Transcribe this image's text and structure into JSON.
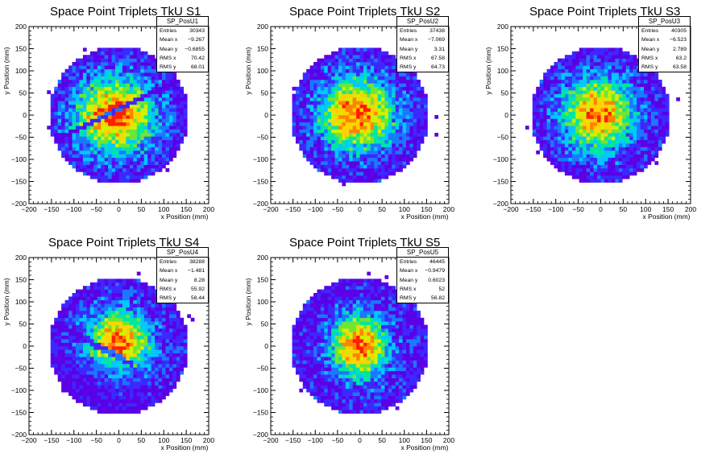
{
  "chart_data": [
    {
      "type": "heatmap",
      "title": "Space Point Triplets TkU S1",
      "xlabel": "x Position (mm)",
      "ylabel": "y Position (mm)",
      "xlim": [
        -200,
        200
      ],
      "ylim": [
        -200,
        200
      ],
      "xticks": [
        -200,
        -150,
        -100,
        -50,
        0,
        50,
        100,
        150,
        200
      ],
      "yticks": [
        -200,
        -150,
        -100,
        -50,
        0,
        50,
        100,
        150,
        200
      ],
      "stats": {
        "name": "SP_PosU1",
        "rows": [
          {
            "label": "Entries",
            "value": "30343"
          },
          {
            "label": "Mean x",
            "value": "−9.267"
          },
          {
            "label": "Mean y",
            "value": "−0.6855"
          },
          {
            "label": "RMS x",
            "value": "70.42"
          },
          {
            "label": "RMS y",
            "value": "68.01"
          }
        ]
      },
      "distribution": {
        "radius_mm": 155,
        "center_x": -9.267,
        "center_y": -0.6855,
        "sigma_x": 70.42,
        "sigma_y": 68.01,
        "feature": "diagonal-gap"
      }
    },
    {
      "type": "heatmap",
      "title": "Space Point Triplets TkU S2",
      "xlabel": "x Position (mm)",
      "ylabel": "y Position (mm)",
      "xlim": [
        -200,
        200
      ],
      "ylim": [
        -200,
        200
      ],
      "xticks": [
        -200,
        -150,
        -100,
        -50,
        0,
        50,
        100,
        150,
        200
      ],
      "yticks": [
        -200,
        -150,
        -100,
        -50,
        0,
        50,
        100,
        150,
        200
      ],
      "stats": {
        "name": "SP_PosU2",
        "rows": [
          {
            "label": "Entries",
            "value": "37438"
          },
          {
            "label": "Mean x",
            "value": "−7.069"
          },
          {
            "label": "Mean y",
            "value": "3.31"
          },
          {
            "label": "RMS x",
            "value": "67.58"
          },
          {
            "label": "RMS y",
            "value": "64.73"
          }
        ]
      },
      "distribution": {
        "radius_mm": 155,
        "center_x": -7.069,
        "center_y": 3.31,
        "sigma_x": 67.58,
        "sigma_y": 64.73,
        "feature": "none"
      }
    },
    {
      "type": "heatmap",
      "title": "Space Point Triplets TkU S3",
      "xlabel": "x Position (mm)",
      "ylabel": "y Position (mm)",
      "xlim": [
        -200,
        200
      ],
      "ylim": [
        -200,
        200
      ],
      "xticks": [
        -200,
        -150,
        -100,
        -50,
        0,
        50,
        100,
        150,
        200
      ],
      "yticks": [
        -200,
        -150,
        -100,
        -50,
        0,
        50,
        100,
        150,
        200
      ],
      "stats": {
        "name": "SP_PosU3",
        "rows": [
          {
            "label": "Entries",
            "value": "40305"
          },
          {
            "label": "Mean x",
            "value": "−6.523"
          },
          {
            "label": "Mean y",
            "value": "2.789"
          },
          {
            "label": "RMS x",
            "value": "63.2"
          },
          {
            "label": "RMS y",
            "value": "63.58"
          }
        ]
      },
      "distribution": {
        "radius_mm": 155,
        "center_x": -6.523,
        "center_y": 2.789,
        "sigma_x": 63.2,
        "sigma_y": 63.58,
        "feature": "none"
      }
    },
    {
      "type": "heatmap",
      "title": "Space Point Triplets TkU S4",
      "xlabel": "x Position (mm)",
      "ylabel": "y Position (mm)",
      "xlim": [
        -200,
        200
      ],
      "ylim": [
        -200,
        200
      ],
      "xticks": [
        -200,
        -150,
        -100,
        -50,
        0,
        50,
        100,
        150,
        200
      ],
      "yticks": [
        -200,
        -150,
        -100,
        -50,
        0,
        50,
        100,
        150,
        200
      ],
      "stats": {
        "name": "SP_PosU4",
        "rows": [
          {
            "label": "Entries",
            "value": "38288"
          },
          {
            "label": "Mean x",
            "value": "−1.481"
          },
          {
            "label": "Mean y",
            "value": "8.28"
          },
          {
            "label": "RMS x",
            "value": "55.92"
          },
          {
            "label": "RMS y",
            "value": "58.44"
          }
        ]
      },
      "distribution": {
        "radius_mm": 155,
        "center_x": -1.481,
        "center_y": 8.28,
        "sigma_x": 55.92,
        "sigma_y": 58.44,
        "feature": "diagonal-gap-left"
      }
    },
    {
      "type": "heatmap",
      "title": "Space Point Triplets TkU S5",
      "xlabel": "x Position (mm)",
      "ylabel": "y Position (mm)",
      "xlim": [
        -200,
        200
      ],
      "ylim": [
        -200,
        200
      ],
      "xticks": [
        -200,
        -150,
        -100,
        -50,
        0,
        50,
        100,
        150,
        200
      ],
      "yticks": [
        -200,
        -150,
        -100,
        -50,
        0,
        50,
        100,
        150,
        200
      ],
      "stats": {
        "name": "SP_PosU5",
        "rows": [
          {
            "label": "Entries",
            "value": "46445"
          },
          {
            "label": "Mean x",
            "value": "−0.9479"
          },
          {
            "label": "Mean y",
            "value": "0.6023"
          },
          {
            "label": "RMS x",
            "value": "52"
          },
          {
            "label": "RMS y",
            "value": "56.82"
          }
        ]
      },
      "distribution": {
        "radius_mm": 155,
        "center_x": -0.9479,
        "center_y": 0.6023,
        "sigma_x": 52,
        "sigma_y": 56.82,
        "feature": "none"
      }
    }
  ],
  "colors": {
    "palette": [
      "#5a00e6",
      "#3c28ff",
      "#1a78ff",
      "#00c8ff",
      "#00e6a0",
      "#6ee632",
      "#d2f000",
      "#ffd200",
      "#ff8200",
      "#ff1e00"
    ]
  }
}
